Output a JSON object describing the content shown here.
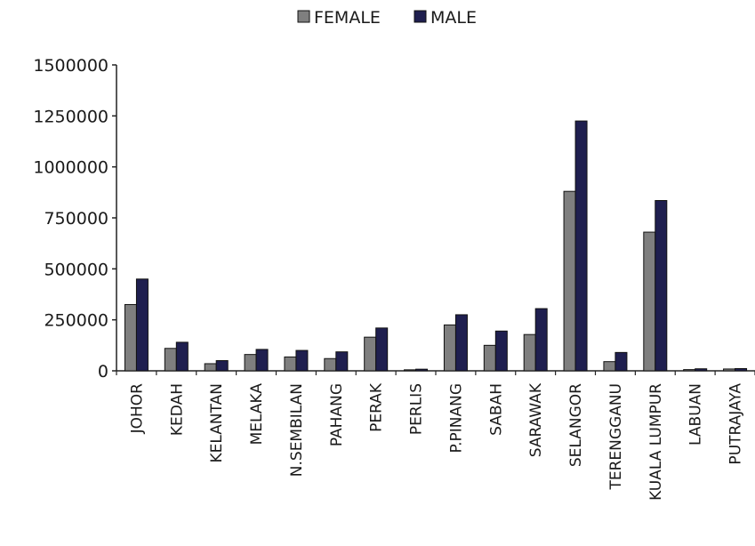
{
  "chart_data": {
    "type": "bar",
    "title": "",
    "xlabel": "",
    "ylabel": "",
    "ylim": [
      0,
      1500000
    ],
    "yticks": [
      0,
      250000,
      500000,
      750000,
      1000000,
      1250000,
      1500000
    ],
    "ytick_labels": [
      "0",
      "250000",
      "500000",
      "750000",
      "1000000",
      "1250000",
      "1500000"
    ],
    "grid": false,
    "legend_position": "top-center",
    "categories": [
      "JOHOR",
      "KEDAH",
      "KELANTAN",
      "MELAKA",
      "N.SEMBILAN",
      "PAHANG",
      "PERAK",
      "PERLIS",
      "P.PINANG",
      "SABAH",
      "SARAWAK",
      "SELANGOR",
      "TERENGGANU",
      "KUALA LUMPUR",
      "LABUAN",
      "PUTRAJAYA"
    ],
    "series": [
      {
        "name": "FEMALE",
        "color": "#7f7f7f",
        "values": [
          325000,
          110000,
          35000,
          80000,
          68000,
          60000,
          165000,
          5000,
          225000,
          125000,
          178000,
          880000,
          45000,
          680000,
          6000,
          9000
        ]
      },
      {
        "name": "MALE",
        "color": "#1f1f4f",
        "values": [
          450000,
          140000,
          50000,
          105000,
          100000,
          93000,
          210000,
          8000,
          275000,
          195000,
          305000,
          1225000,
          90000,
          835000,
          10000,
          11000
        ]
      }
    ]
  }
}
